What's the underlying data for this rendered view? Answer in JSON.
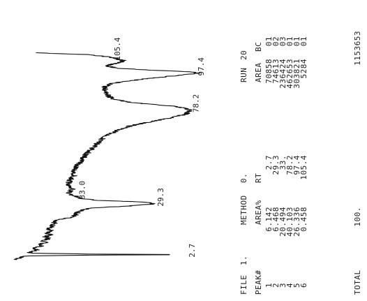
{
  "report": {
    "file_label": "FILE",
    "file_value": "1.",
    "method_label": "METHOD",
    "method_value": "0.",
    "run_label": "RUN",
    "run_value": "20",
    "col_peak": "PEAK#",
    "col_area_pct": "AREA%",
    "col_rt": "RT",
    "col_area": "AREA",
    "col_bc": "BC",
    "total_label": "TOTAL",
    "total_pct": "100.",
    "total_area": "1153653"
  },
  "chart_data": {
    "type": "line",
    "title": "",
    "xlabel": "",
    "ylabel": "",
    "orientation": "printed sideways: time runs up the page, signal runs to the right",
    "xlim": [
      0,
      110
    ],
    "ylim": [
      0,
      100
    ],
    "series": [
      {
        "values_note": "detector response (relative units, estimated from trace)",
        "x": [
          0,
          1,
          2,
          2.4,
          2.7,
          3.0,
          3.5,
          4,
          5,
          6,
          7,
          8,
          9,
          10,
          11,
          12,
          13,
          14,
          15,
          16,
          17,
          18,
          19,
          20,
          21,
          22,
          23,
          24,
          25,
          26,
          27,
          28,
          29,
          29.3,
          30,
          31,
          32,
          33,
          33.3,
          34,
          35,
          36,
          37,
          38,
          40,
          42,
          44,
          46,
          48,
          50,
          52,
          54,
          56,
          58,
          60,
          62,
          64,
          66,
          68,
          70,
          72,
          74,
          76,
          78.2,
          80,
          82,
          84,
          86,
          88,
          90,
          92,
          94,
          96,
          97.4,
          98,
          99,
          100,
          101,
          102,
          103,
          104,
          105.4,
          106,
          107,
          108
        ],
        "y": [
          3,
          5,
          8,
          40,
          90,
          40,
          10,
          10,
          14,
          12,
          16,
          15,
          18,
          17,
          20,
          18,
          21,
          19,
          22,
          20,
          21,
          22,
          23,
          22,
          24,
          31,
          33,
          34,
          35,
          37,
          42,
          60,
          72,
          74,
          70,
          45,
          36,
          34,
          33,
          31,
          30,
          31,
          32,
          31,
          30,
          31,
          33,
          32,
          34,
          35,
          37,
          38,
          40,
          42,
          44,
          46,
          48,
          52,
          56,
          62,
          72,
          82,
          90,
          92,
          85,
          62,
          52,
          50,
          49,
          48,
          52,
          66,
          84,
          97,
          92,
          70,
          54,
          50,
          52,
          56,
          58,
          52,
          49,
          40,
          12
        ]
      }
    ],
    "peak_labels": [
      {
        "text": "2.7",
        "rt": 2.7
      },
      {
        "text": "29.3",
        "rt": 29.3
      },
      {
        "text": "33.0",
        "rt": 33.0
      },
      {
        "text": "78.2",
        "rt": 78.2
      },
      {
        "text": "97.4",
        "rt": 97.4
      },
      {
        "text": "105.4",
        "rt": 105.4
      }
    ],
    "peaks": [
      {
        "peak": "1",
        "area_pct": "6.142",
        "rt": "2.7",
        "area": "70858",
        "bc": "01"
      },
      {
        "peak": "2",
        "area_pct": "6.468",
        "rt": "29.3",
        "area": "74613",
        "bc": "02"
      },
      {
        "peak": "3",
        "area_pct": "20.494",
        "rt": "33.",
        "area": "236424",
        "bc": "03"
      },
      {
        "peak": "4",
        "area_pct": "40.103",
        "rt": "78.2",
        "area": "462653",
        "bc": "01"
      },
      {
        "peak": "5",
        "area_pct": "26.336",
        "rt": "97.4",
        "area": "303821",
        "bc": "01"
      },
      {
        "peak": "6",
        "area_pct": "0.458",
        "rt": "105.4",
        "area": "5284",
        "bc": "01"
      }
    ]
  }
}
